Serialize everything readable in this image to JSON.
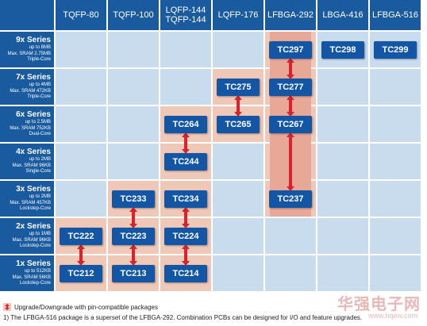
{
  "columns": [
    "TQFP-80",
    "TQFP-100",
    "LQFP-144\nTQFP-144",
    "LQFP-176",
    "LFBGA-292",
    "LBGA-416",
    "LFBGA-516"
  ],
  "rows": [
    {
      "title": "9x Series",
      "lines": [
        "up to 8MB",
        "Max. SRAM 2.75MB",
        "Triple-Core"
      ]
    },
    {
      "title": "7x Series",
      "lines": [
        "up to 4MB",
        "Max. SRAM 472KB",
        "Triple-Core"
      ]
    },
    {
      "title": "6x Series",
      "lines": [
        "up to 2.5MB",
        "Max. SRAM 752KB",
        "Dual-Core"
      ]
    },
    {
      "title": "4x Series",
      "lines": [
        "up to 2MB",
        "Max. SRAM 96KB",
        "Single-Core"
      ]
    },
    {
      "title": "3x Series",
      "lines": [
        "up to 2MB",
        "Max. SRAM 457KB",
        "Lockstep-Core"
      ]
    },
    {
      "title": "2x Series",
      "lines": [
        "up to 1MB",
        "Max. SRAM 96KB",
        "Lockstep-Core"
      ]
    },
    {
      "title": "1x Series",
      "lines": [
        "up to 512KB",
        "Max. SRAM 56KB",
        "Lockstep-Core"
      ]
    }
  ],
  "chips": [
    {
      "label": "TC297",
      "row": 0,
      "col": 4
    },
    {
      "label": "TC298",
      "row": 0,
      "col": 5
    },
    {
      "label": "TC299",
      "row": 0,
      "col": 6
    },
    {
      "label": "TC275",
      "row": 1,
      "col": 3
    },
    {
      "label": "TC277",
      "row": 1,
      "col": 4
    },
    {
      "label": "TC264",
      "row": 2,
      "col": 2
    },
    {
      "label": "TC265",
      "row": 2,
      "col": 3
    },
    {
      "label": "TC267",
      "row": 2,
      "col": 4
    },
    {
      "label": "TC244",
      "row": 3,
      "col": 2
    },
    {
      "label": "TC233",
      "row": 4,
      "col": 1
    },
    {
      "label": "TC234",
      "row": 4,
      "col": 2
    },
    {
      "label": "TC237",
      "row": 4,
      "col": 4
    },
    {
      "label": "TC222",
      "row": 5,
      "col": 0
    },
    {
      "label": "TC223",
      "row": 5,
      "col": 1
    },
    {
      "label": "TC224",
      "row": 5,
      "col": 2
    },
    {
      "label": "TC212",
      "row": 6,
      "col": 0
    },
    {
      "label": "TC213",
      "row": 6,
      "col": 1
    },
    {
      "label": "TC214",
      "row": 6,
      "col": 2
    }
  ],
  "highlighted_cells": [
    [
      0,
      4
    ],
    [
      1,
      3
    ],
    [
      1,
      4
    ],
    [
      2,
      2
    ],
    [
      2,
      3
    ],
    [
      2,
      4
    ],
    [
      3,
      2
    ],
    [
      3,
      4
    ],
    [
      4,
      1
    ],
    [
      4,
      2
    ],
    [
      4,
      4
    ],
    [
      5,
      0
    ],
    [
      5,
      1
    ],
    [
      5,
      2
    ],
    [
      6,
      0
    ],
    [
      6,
      1
    ],
    [
      6,
      2
    ]
  ],
  "arrows": [
    {
      "col": 4,
      "from_row": 0,
      "to_row": 1
    },
    {
      "col": 4,
      "from_row": 1,
      "to_row": 2
    },
    {
      "col": 4,
      "from_row": 2,
      "to_row": 4
    },
    {
      "col": 3,
      "from_row": 1,
      "to_row": 2
    },
    {
      "col": 2,
      "from_row": 2,
      "to_row": 3
    },
    {
      "col": 2,
      "from_row": 4,
      "to_row": 5
    },
    {
      "col": 2,
      "from_row": 5,
      "to_row": 6
    },
    {
      "col": 1,
      "from_row": 4,
      "to_row": 5
    },
    {
      "col": 1,
      "from_row": 5,
      "to_row": 6
    },
    {
      "col": 0,
      "from_row": 5,
      "to_row": 6
    }
  ],
  "legend": {
    "text": "Upgrade/Downgrade with pin-compatible packages",
    "icon": "double-arrow-icon"
  },
  "footnote": "1) The LFBGA-516 package is a superset of the LFBGA-292. Combination PCBs can be designed for I/O and feature upgrades.",
  "watermark": {
    "cn": "华强电子网",
    "url": "www.hqew.com"
  },
  "colors": {
    "header": "#1a5a9e",
    "chip": "#1256a5",
    "empty_cell": "#c9dcee",
    "highlight_cell": "#f0c8b8",
    "arrow": "#d8232a"
  }
}
